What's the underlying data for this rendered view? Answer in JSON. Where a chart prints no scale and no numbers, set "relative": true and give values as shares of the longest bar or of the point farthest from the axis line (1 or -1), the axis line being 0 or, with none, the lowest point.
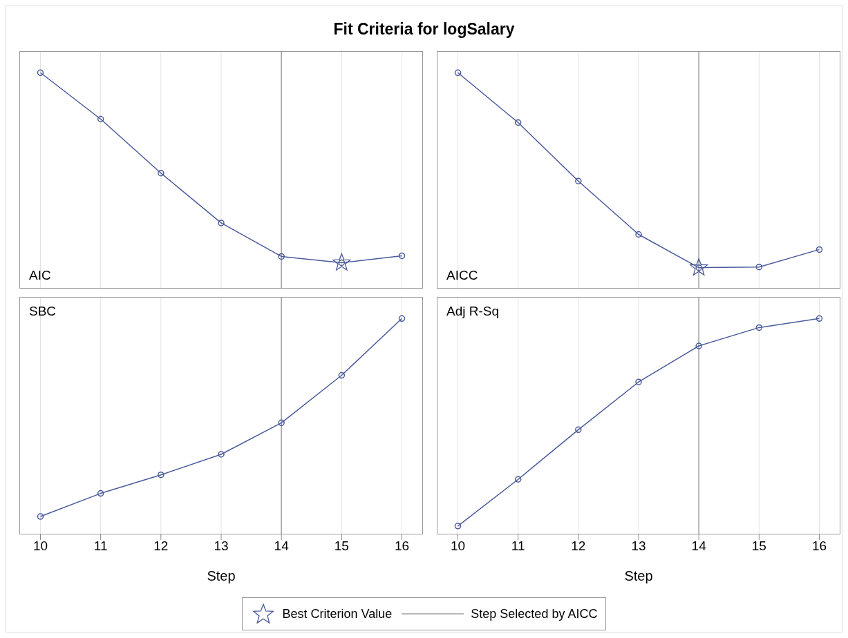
{
  "chart_data": [
    {
      "type": "line",
      "title": "Fit Criteria for logSalary",
      "subtitle": "AIC",
      "relative": true,
      "xlim": [
        9.65,
        16.35
      ],
      "xticks": [
        10,
        11,
        12,
        13,
        14,
        15,
        16
      ],
      "tick_labels": false,
      "grid": "x",
      "marker": "circle",
      "legend": "bottom",
      "ref_lines": [
        {
          "axis": "x",
          "value": 14,
          "label": "Step Selected by AICC",
          "color": "#a0a0a0"
        }
      ],
      "series": [
        {
          "color": "#4a5a9b",
          "x": [
            10,
            11,
            12,
            13,
            14,
            15,
            16
          ],
          "values": [
            1,
            0.785,
            0.535,
            0.304,
            0.149,
            0.12,
            0.152
          ]
        },
        {
          "type": "scatter",
          "marker": "star",
          "name": "Best Criterion Value",
          "color": "#4a5a9b",
          "x": [
            15
          ],
          "values": [
            0.12
          ]
        }
      ]
    },
    {
      "type": "line",
      "subtitle": "AICC",
      "relative": true,
      "xlim": [
        9.65,
        16.35
      ],
      "xticks": [
        10,
        11,
        12,
        13,
        14,
        15,
        16
      ],
      "tick_labels": false,
      "grid": "x",
      "marker": "circle",
      "ref_lines": [
        {
          "axis": "x",
          "value": 14,
          "color": "#a0a0a0"
        }
      ],
      "series": [
        {
          "color": "#4a5a9b",
          "x": [
            10,
            11,
            12,
            13,
            14,
            15,
            16
          ],
          "values": [
            1,
            0.769,
            0.498,
            0.251,
            0.097,
            0.1,
            0.181
          ]
        },
        {
          "type": "scatter",
          "marker": "star",
          "color": "#4a5a9b",
          "x": [
            14
          ],
          "values": [
            0.097
          ]
        }
      ]
    },
    {
      "type": "line",
      "subtitle": "SBC",
      "xlabel": "Step",
      "relative": true,
      "xlim": [
        9.65,
        16.35
      ],
      "xticks": [
        10,
        11,
        12,
        13,
        14,
        15,
        16
      ],
      "tick_labels": "x",
      "grid": "x",
      "marker": "circle",
      "ref_lines": [
        {
          "axis": "x",
          "value": 14,
          "color": "#a0a0a0"
        }
      ],
      "series": [
        {
          "color": "#4a5a9b",
          "x": [
            10,
            11,
            12,
            13,
            14,
            15,
            16
          ],
          "values": [
            0.083,
            0.19,
            0.276,
            0.371,
            0.517,
            0.737,
            1
          ]
        }
      ]
    },
    {
      "type": "line",
      "subtitle": "Adj R-Sq",
      "xlabel": "Step",
      "relative": true,
      "xlim": [
        9.65,
        16.35
      ],
      "xticks": [
        10,
        11,
        12,
        13,
        14,
        15,
        16
      ],
      "tick_labels": "x",
      "grid": "x",
      "marker": "circle",
      "ref_lines": [
        {
          "axis": "x",
          "value": 14,
          "color": "#a0a0a0"
        }
      ],
      "series": [
        {
          "color": "#4a5a9b",
          "x": [
            10,
            11,
            12,
            13,
            14,
            15,
            16
          ],
          "values": [
            0.039,
            0.255,
            0.485,
            0.706,
            0.873,
            0.958,
            1
          ]
        }
      ]
    }
  ]
}
